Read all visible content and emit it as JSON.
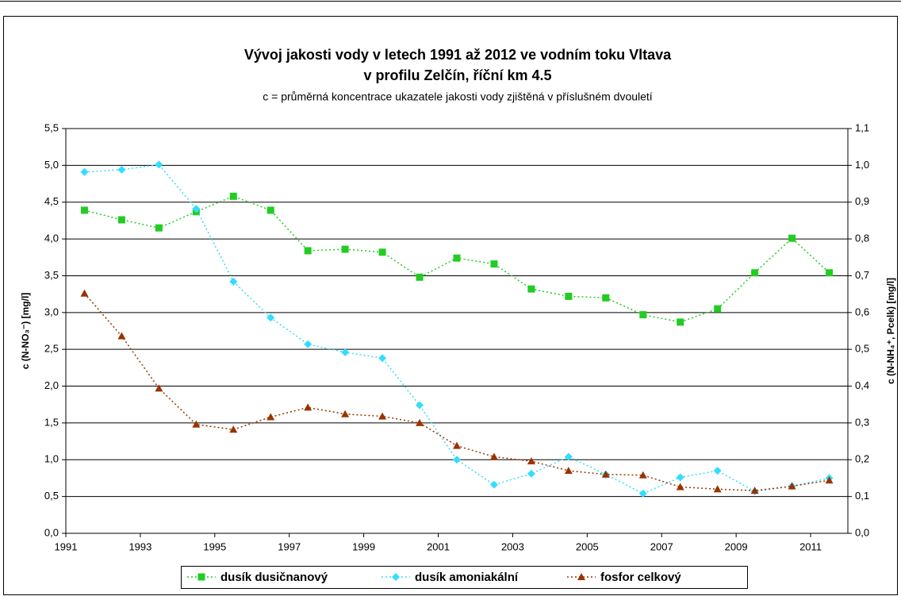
{
  "chart_data": {
    "type": "line",
    "title": "Vývoj jakosti vody v letech 1991 až 2012 ve vodním toku Vltava",
    "subtitle": "v profilu Zelčín, říční km 4.5",
    "note": "c = průměrná koncentrace ukazatele jakosti vody zjištěná v příslušném dvouletí",
    "y_label": "c (N-NO₃⁻) [mg/l]",
    "y2_label": "c (N-NH₄⁺, Pcelk) [mg/l]",
    "x": [
      1991.5,
      1992.5,
      1993.5,
      1994.5,
      1995.5,
      1996.5,
      1997.5,
      1998.5,
      1999.5,
      2000.5,
      2001.5,
      2002.5,
      2003.5,
      2004.5,
      2005.5,
      2006.5,
      2007.5,
      2008.5,
      2009.5,
      2010.5,
      2011.5
    ],
    "xlim": [
      1991,
      2012
    ],
    "xticks": [
      1991,
      1993,
      1995,
      1997,
      1999,
      2001,
      2003,
      2005,
      2007,
      2009,
      2011
    ],
    "ylim": [
      0,
      5.5
    ],
    "yticks": [
      {
        "value": 0,
        "label": "0,0"
      },
      {
        "value": 0.5,
        "label": "0,5"
      },
      {
        "value": 1,
        "label": "1,0"
      },
      {
        "value": 1.5,
        "label": "1,5"
      },
      {
        "value": 2,
        "label": "2,0"
      },
      {
        "value": 2.5,
        "label": "2,5"
      },
      {
        "value": 3,
        "label": "3,0"
      },
      {
        "value": 3.5,
        "label": "3,5"
      },
      {
        "value": 4,
        "label": "4,0"
      },
      {
        "value": 4.5,
        "label": "4,5"
      },
      {
        "value": 5,
        "label": "5,0"
      },
      {
        "value": 5.5,
        "label": "5,5"
      }
    ],
    "y2lim": [
      0,
      1.1
    ],
    "y2ticks": [
      {
        "value": 0,
        "label": "0,0"
      },
      {
        "value": 0.1,
        "label": "0,1"
      },
      {
        "value": 0.2,
        "label": "0,2"
      },
      {
        "value": 0.3,
        "label": "0,3"
      },
      {
        "value": 0.4,
        "label": "0,4"
      },
      {
        "value": 0.5,
        "label": "0,5"
      },
      {
        "value": 0.6,
        "label": "0,6"
      },
      {
        "value": 0.7,
        "label": "0,7"
      },
      {
        "value": 0.8,
        "label": "0,8"
      },
      {
        "value": 0.9,
        "label": "0,9"
      },
      {
        "value": 1,
        "label": "1,0"
      },
      {
        "value": 1.1,
        "label": "1,1"
      }
    ],
    "grid": true,
    "legend": "bottom",
    "series": [
      {
        "name": "dusík dusičnanový",
        "color": "#22cc22",
        "marker": "square",
        "values": [
          4.39,
          4.26,
          4.15,
          4.37,
          4.58,
          4.39,
          3.84,
          3.86,
          3.82,
          3.48,
          3.74,
          3.66,
          3.32,
          3.22,
          3.2,
          2.97,
          2.87,
          3.05,
          3.54,
          4.01,
          3.54
        ]
      },
      {
        "name": "dusík amoniakální",
        "color": "#33ddff",
        "marker": "diamond",
        "axis": "y2",
        "values": [
          0.982,
          0.988,
          1.002,
          0.882,
          0.684,
          0.586,
          0.514,
          0.492,
          0.476,
          0.348,
          0.2,
          0.132,
          0.162,
          0.208,
          0.16,
          0.108,
          0.152,
          0.17,
          0.114,
          0.128,
          0.15
        ]
      },
      {
        "name": "fosfor celkový",
        "color": "#993300",
        "marker": "triangle",
        "axis": "y2",
        "values": [
          0.652,
          0.536,
          0.394,
          0.296,
          0.282,
          0.316,
          0.342,
          0.324,
          0.318,
          0.3,
          0.238,
          0.208,
          0.196,
          0.17,
          0.16,
          0.158,
          0.126,
          0.12,
          0.116,
          0.128,
          0.144
        ]
      }
    ]
  }
}
